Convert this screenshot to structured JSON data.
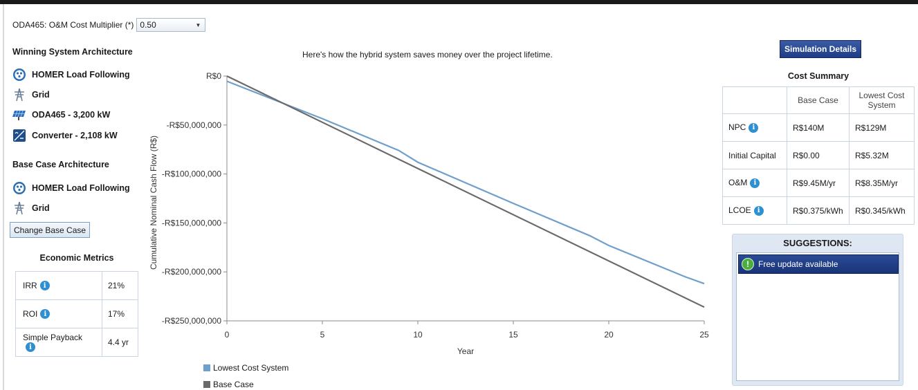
{
  "multiplier": {
    "label": "ODA465: O&M Cost Multiplier (*)",
    "value": "0.50"
  },
  "winning": {
    "title": "Winning System Architecture",
    "items": [
      {
        "icon": "homer-dispatch-icon",
        "label": "HOMER Load Following"
      },
      {
        "icon": "grid-tower-icon",
        "label": "Grid"
      },
      {
        "icon": "solar-panel-icon",
        "label": "ODA465 - 3,200 kW"
      },
      {
        "icon": "converter-icon",
        "label": "Converter - 2,108 kW"
      }
    ]
  },
  "base": {
    "title": "Base Case Architecture",
    "items": [
      {
        "icon": "homer-dispatch-icon",
        "label": "HOMER Load Following"
      },
      {
        "icon": "grid-tower-icon",
        "label": "Grid"
      }
    ],
    "change_label": "Change Base Case"
  },
  "economic": {
    "title": "Economic Metrics",
    "rows": [
      {
        "label": "IRR",
        "value": "21%"
      },
      {
        "label": "ROI",
        "value": "17%"
      },
      {
        "label": "Simple Payback",
        "value": "4.4 yr"
      }
    ]
  },
  "chart_caption": "Here's how the hybrid system saves money over the project lifetime.",
  "chart_data": {
    "type": "line",
    "xlabel": "Year",
    "ylabel": "Cumulative Nominal Cash Flow (R$)",
    "xlim": [
      0,
      25
    ],
    "ylim": [
      -250000000,
      0
    ],
    "x_ticks": [
      0,
      5,
      10,
      15,
      20,
      25
    ],
    "y_ticks": [
      0,
      -50000000,
      -100000000,
      -150000000,
      -200000000,
      -250000000
    ],
    "y_tick_labels": [
      "R$0",
      "-R$50,000,000",
      "-R$100,000,000",
      "-R$150,000,000",
      "-R$200,000,000",
      "-R$250,000,000"
    ],
    "series": [
      {
        "name": "Lowest Cost System",
        "color": "#6f9fcb",
        "x": [
          0,
          5,
          9,
          10,
          15,
          19,
          20,
          24,
          25
        ],
        "y": [
          -5300000,
          -43500000,
          -76000000,
          -88000000,
          -130000000,
          -163000000,
          -173000000,
          -205000000,
          -212000000
        ]
      },
      {
        "name": "Base Case",
        "color": "#6a6a6a",
        "x": [
          0,
          25
        ],
        "y": [
          0,
          -236000000
        ]
      }
    ]
  },
  "sim_button": "Simulation Details",
  "cost": {
    "title": "Cost Summary",
    "headers": [
      "",
      "Base Case",
      "Lowest Cost System"
    ],
    "rows": [
      {
        "label": "NPC",
        "base": "R$140M",
        "lowest": "R$129M"
      },
      {
        "label": "Initial Capital",
        "base": "R$0.00",
        "lowest": "R$5.32M"
      },
      {
        "label": "O&M",
        "base": "R$9.45M/yr",
        "lowest": "R$8.35M/yr"
      },
      {
        "label": "LCOE",
        "base": "R$0.375/kWh",
        "lowest": "R$0.345/kWh"
      }
    ]
  },
  "suggestions": {
    "title": "SUGGESTIONS:",
    "items": [
      "Free update available"
    ]
  },
  "colors": {
    "accent_dark_blue": "#1f3d86",
    "info_blue": "#2e8fd1",
    "warn_green": "#4cae3c"
  }
}
